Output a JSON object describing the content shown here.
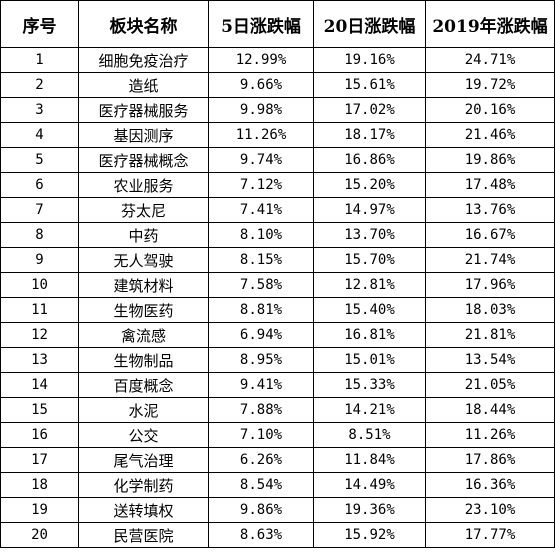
{
  "table": {
    "headers": [
      "序号",
      "板块名称",
      "5日涨跌幅",
      "20日涨跌幅",
      "2019年涨跌幅"
    ],
    "rows": [
      [
        "1",
        "细胞免疫治疗",
        "12.99%",
        "19.16%",
        "24.71%"
      ],
      [
        "2",
        "造纸",
        "9.66%",
        "15.61%",
        "19.72%"
      ],
      [
        "3",
        "医疗器械服务",
        "9.98%",
        "17.02%",
        "20.16%"
      ],
      [
        "4",
        "基因测序",
        "11.26%",
        "18.17%",
        "21.46%"
      ],
      [
        "5",
        "医疗器械概念",
        "9.74%",
        "16.86%",
        "19.86%"
      ],
      [
        "6",
        "农业服务",
        "7.12%",
        "15.20%",
        "17.48%"
      ],
      [
        "7",
        "芬太尼",
        "7.41%",
        "14.97%",
        "13.76%"
      ],
      [
        "8",
        "中药",
        "8.10%",
        "13.70%",
        "16.67%"
      ],
      [
        "9",
        "无人驾驶",
        "8.15%",
        "15.70%",
        "21.74%"
      ],
      [
        "10",
        "建筑材料",
        "7.58%",
        "12.81%",
        "17.96%"
      ],
      [
        "11",
        "生物医药",
        "8.81%",
        "15.40%",
        "18.03%"
      ],
      [
        "12",
        "禽流感",
        "6.94%",
        "16.81%",
        "21.81%"
      ],
      [
        "13",
        "生物制品",
        "8.95%",
        "15.01%",
        "13.54%"
      ],
      [
        "14",
        "百度概念",
        "9.41%",
        "15.33%",
        "21.05%"
      ],
      [
        "15",
        "水泥",
        "7.88%",
        "14.21%",
        "18.44%"
      ],
      [
        "16",
        "公交",
        "7.10%",
        "8.51%",
        "11.26%"
      ],
      [
        "17",
        "尾气治理",
        "6.26%",
        "11.84%",
        "17.86%"
      ],
      [
        "18",
        "化学制药",
        "8.54%",
        "14.49%",
        "16.36%"
      ],
      [
        "19",
        "送转填权",
        "9.86%",
        "19.36%",
        "23.10%"
      ],
      [
        "20",
        "民营医院",
        "8.63%",
        "15.92%",
        "17.77%"
      ]
    ]
  }
}
